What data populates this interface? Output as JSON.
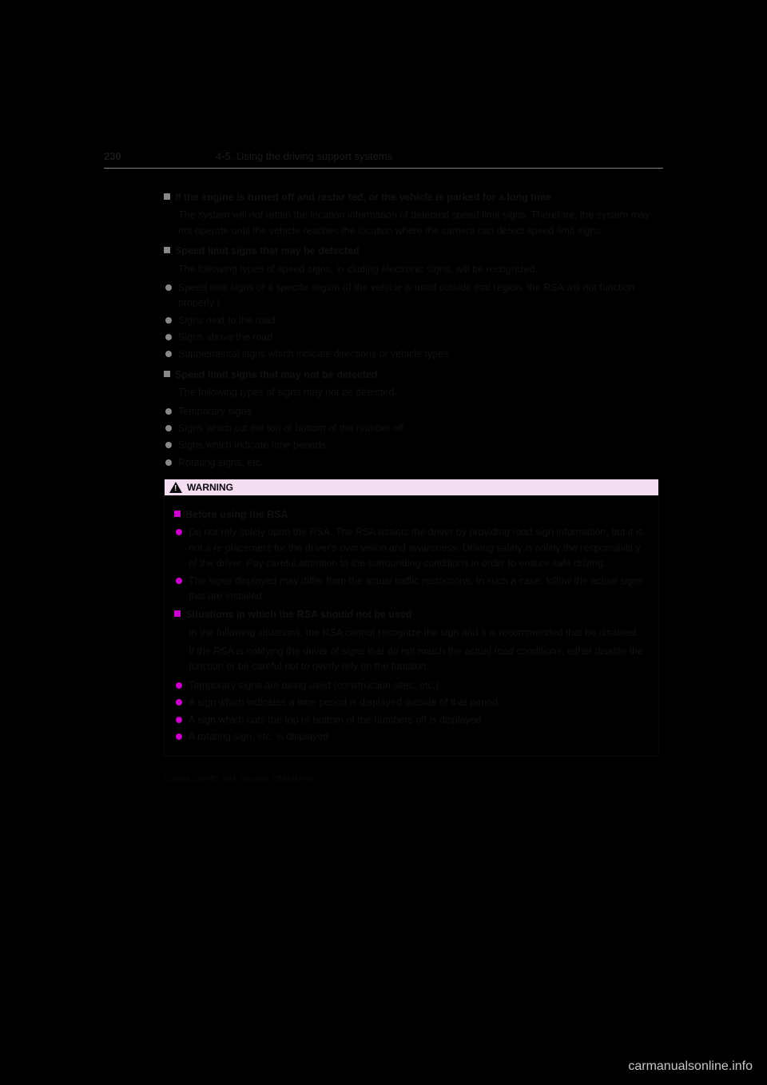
{
  "header": {
    "page_number": "230",
    "section": "4-5. Using the driving support systems"
  },
  "sections": [
    {
      "marker": "sq-gray",
      "heading": "If the engine is turned off and restar ted, or the vehicle is parked for a long time",
      "lines": [
        "The system will not retain the location information of detected speed limit signs. Therefore, the system may not operate until the vehicle reaches the location where the camera can detect speed limit signs."
      ]
    },
    {
      "marker": "sq-gray",
      "heading": "Speed limit signs  that may be detected",
      "lines": [
        "The following types of speed signs, in cluding electronic signs, will be recognized."
      ],
      "bullets": [
        "Speed limit signs of a specific region (If the vehicle is used outside that region, the RSA will not function properly.)",
        "Signs next to the road",
        "Signs above the road",
        "Supplemental signs which indicate  directions or vehicle types"
      ]
    },
    {
      "marker": "sq-gray",
      "heading": "Speed limit signs  that may not be detected",
      "lines": [
        "The following types of signs may not be detected."
      ],
      "bullets": [
        "Temporary signs",
        "Signs which cut the top or bottom of the number off",
        "Signs which indicate time periods",
        "Rotating signs, etc."
      ]
    }
  ],
  "warning": {
    "label": "WARNING",
    "sections": [
      {
        "marker": "sq-mag",
        "heading": "Before using the RSA",
        "bullets": [
          "Do not rely solely upon the RSA. The RSA assists the driver by providing road sign information, but it is not a re placement for the driver's own vision and awareness. Driving safely is  solely the responsibilit y of the driver. Pay careful attention to the surrounding conditions in order to ensure safe driving.",
          "The signs displayed may differ from the actual traffic restrictions. In such a case, follow the actual signs that are installed."
        ]
      },
      {
        "marker": "sq-mag",
        "heading": "Situations in which the RSA should not be used",
        "lines": [
          "In the following situations, the RSA cannot recognize the sign and it is recommended that be disabled.",
          "If the RSA is notifying the driver of signs that do not match the actual road conditions, either disable the function or be careful not to overly rely on the function."
        ],
        "bullets": [
          "Temporary signs are being used (construction sites, etc.)",
          "A sign which indicates a time period  is displayed outside of that period",
          "A sign which cuts the top or bottom  of the numbers off is displayed",
          "A rotating sign, etc. is displayed"
        ]
      }
    ]
  },
  "footer": "COROLLA(HB)_OM_General_OM12M76E",
  "watermark": "carmanualsonline.info",
  "colors": {
    "background": "#000000",
    "text": "#101010",
    "gray_marker": "#888888",
    "magenta_marker": "#cc00cc",
    "warning_bg": "#f5ddf2",
    "header_line": "#808080",
    "watermark_color": "#c8c8c8"
  }
}
